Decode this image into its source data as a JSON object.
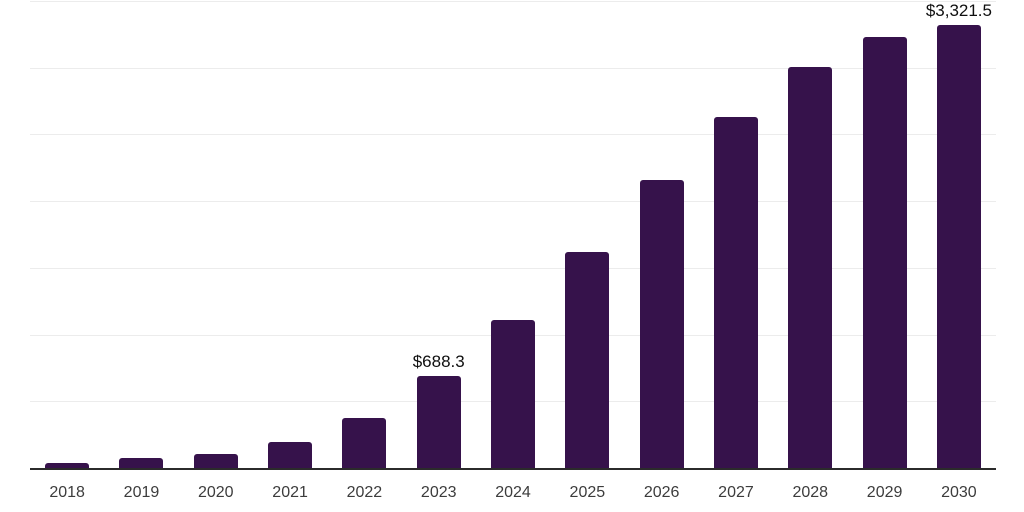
{
  "chart_data": {
    "type": "bar",
    "title": "",
    "xlabel": "",
    "ylabel": "",
    "categories": [
      "2018",
      "2019",
      "2020",
      "2021",
      "2022",
      "2023",
      "2024",
      "2025",
      "2026",
      "2027",
      "2028",
      "2029",
      "2030"
    ],
    "values": [
      37,
      73,
      107,
      197,
      372,
      688.3,
      1112,
      1618,
      2160,
      2631,
      3004,
      3231,
      3321.5
    ],
    "data_labels": [
      "",
      "",
      "",
      "",
      "",
      "$688.3",
      "",
      "",
      "",
      "",
      "",
      "",
      "$3,321.5"
    ],
    "labeled_points": [
      {
        "category": "2023",
        "label": "$688.3",
        "value": 688.3
      },
      {
        "category": "2030",
        "label": "$3,321.5",
        "value": 3321.5
      }
    ],
    "ylim": [
      0,
      3500
    ],
    "gridline_step": 500,
    "grid": "horizontal",
    "y_axis_labels_visible": false,
    "legend": "none",
    "colors": {
      "bar": "#36124b",
      "grid": "#ececec",
      "axis": "#2b2b2b",
      "tick_label": "#3c3c3c",
      "data_label": "#0f0f0f",
      "background": "#ffffff"
    }
  }
}
